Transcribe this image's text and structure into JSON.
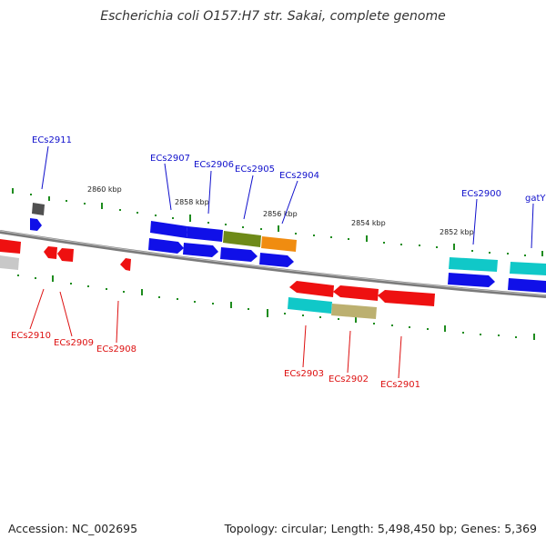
{
  "title": "Escherichia coli O157:H7 str. Sakai, complete genome",
  "footer": {
    "accession": "Accession: NC_002695",
    "summary": "Topology: circular; Length: 5,498,450 bp; Genes: 5,369"
  },
  "colors": {
    "blue": "#1010e8",
    "red": "#ee1010",
    "cyan": "#10c8c8",
    "olive": "#6e8a18",
    "khaki": "#bcb070",
    "orange": "#f08c10",
    "gray_dark": "#505050",
    "gray_light": "#c8c8c8",
    "tick": "#1e8c1e",
    "backbone": "#7a7a7a",
    "label_forward": "#1010cc",
    "label_reverse": "#dd1010"
  },
  "ticks": [
    "2860 kbp",
    "2858 kbp",
    "2856 kbp",
    "2854 kbp",
    "2852 kbp"
  ],
  "gene_labels": {
    "forward": [
      "ECs2911",
      "ECs2907",
      "ECs2906",
      "ECs2905",
      "ECs2904",
      "ECs2900",
      "gatY"
    ],
    "reverse": [
      "ECs2910",
      "ECs2909",
      "ECs2908",
      "ECs2903",
      "ECs2902",
      "ECs2901"
    ]
  }
}
